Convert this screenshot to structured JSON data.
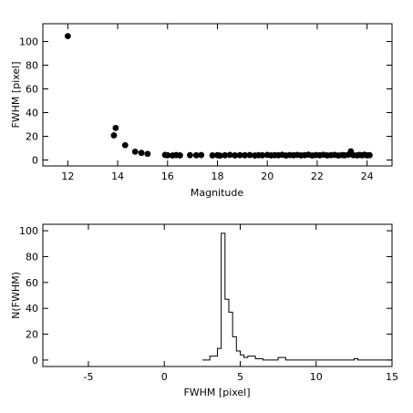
{
  "chart_data": [
    {
      "type": "scatter",
      "xlabel": "Magnitude",
      "ylabel": "FWHM [pixel]",
      "xlim": [
        11,
        25
      ],
      "ylim": [
        -5,
        115
      ],
      "xticks": [
        12,
        14,
        16,
        18,
        20,
        22,
        24
      ],
      "yticks": [
        0,
        20,
        40,
        60,
        80,
        100
      ],
      "grid": false,
      "series": [
        {
          "points": [
            [
              12.0,
              104.5
            ],
            [
              13.85,
              20.8
            ],
            [
              13.92,
              27.0
            ],
            [
              14.3,
              12.5
            ],
            [
              14.7,
              7.0
            ],
            [
              14.95,
              6.0
            ],
            [
              15.2,
              5.2
            ],
            [
              15.9,
              4.3
            ],
            [
              16.0,
              4.0
            ],
            [
              16.2,
              3.8
            ],
            [
              16.35,
              4.2
            ],
            [
              16.5,
              3.9
            ],
            [
              16.9,
              4.1
            ],
            [
              17.15,
              4.0
            ],
            [
              17.35,
              4.2
            ],
            [
              17.8,
              3.9
            ],
            [
              18.0,
              4.1
            ],
            [
              18.1,
              3.7
            ],
            [
              18.3,
              4.0
            ],
            [
              18.5,
              4.3
            ],
            [
              18.7,
              3.9
            ],
            [
              18.9,
              4.1
            ],
            [
              19.1,
              4.0
            ],
            [
              19.3,
              4.2
            ],
            [
              19.5,
              3.8
            ],
            [
              19.65,
              4.1
            ],
            [
              19.8,
              4.0
            ],
            [
              20.0,
              4.3
            ],
            [
              20.15,
              3.9
            ],
            [
              20.3,
              4.1
            ],
            [
              20.45,
              4.0
            ],
            [
              20.6,
              4.4
            ],
            [
              20.75,
              3.8
            ],
            [
              20.9,
              4.2
            ],
            [
              21.05,
              4.0
            ],
            [
              21.2,
              4.3
            ],
            [
              21.35,
              3.9
            ],
            [
              21.5,
              4.1
            ],
            [
              21.65,
              4.5
            ],
            [
              21.8,
              3.8
            ],
            [
              21.95,
              4.2
            ],
            [
              22.1,
              4.0
            ],
            [
              22.25,
              4.4
            ],
            [
              22.4,
              3.9
            ],
            [
              22.55,
              4.1
            ],
            [
              22.7,
              4.3
            ],
            [
              22.85,
              3.8
            ],
            [
              23.0,
              4.2
            ],
            [
              23.1,
              4.0
            ],
            [
              23.25,
              4.4
            ],
            [
              23.35,
              7.3
            ],
            [
              23.45,
              4.1
            ],
            [
              23.6,
              3.9
            ],
            [
              23.7,
              4.3
            ],
            [
              23.8,
              4.0
            ],
            [
              23.9,
              4.5
            ],
            [
              24.0,
              3.9
            ],
            [
              24.1,
              4.1
            ]
          ]
        }
      ]
    },
    {
      "type": "histogram",
      "xlabel": "FWHM [pixel]",
      "ylabel": "N(FWHM)",
      "xlim": [
        -8,
        15
      ],
      "ylim": [
        -5,
        105
      ],
      "xticks": [
        -5,
        0,
        5,
        10,
        15
      ],
      "yticks": [
        0,
        20,
        40,
        60,
        80,
        100
      ],
      "grid": false,
      "bin_edges": [
        2.5,
        3.0,
        3.5,
        3.75,
        4.0,
        4.25,
        4.5,
        4.75,
        5.0,
        5.25,
        5.5,
        6.0,
        6.5,
        7.0,
        7.5,
        8.0,
        12.5,
        12.75,
        15.0
      ],
      "counts": [
        0,
        3,
        9,
        98,
        47,
        37,
        18,
        7,
        4,
        2,
        3,
        1,
        0,
        0,
        2,
        0,
        1,
        0
      ]
    }
  ]
}
